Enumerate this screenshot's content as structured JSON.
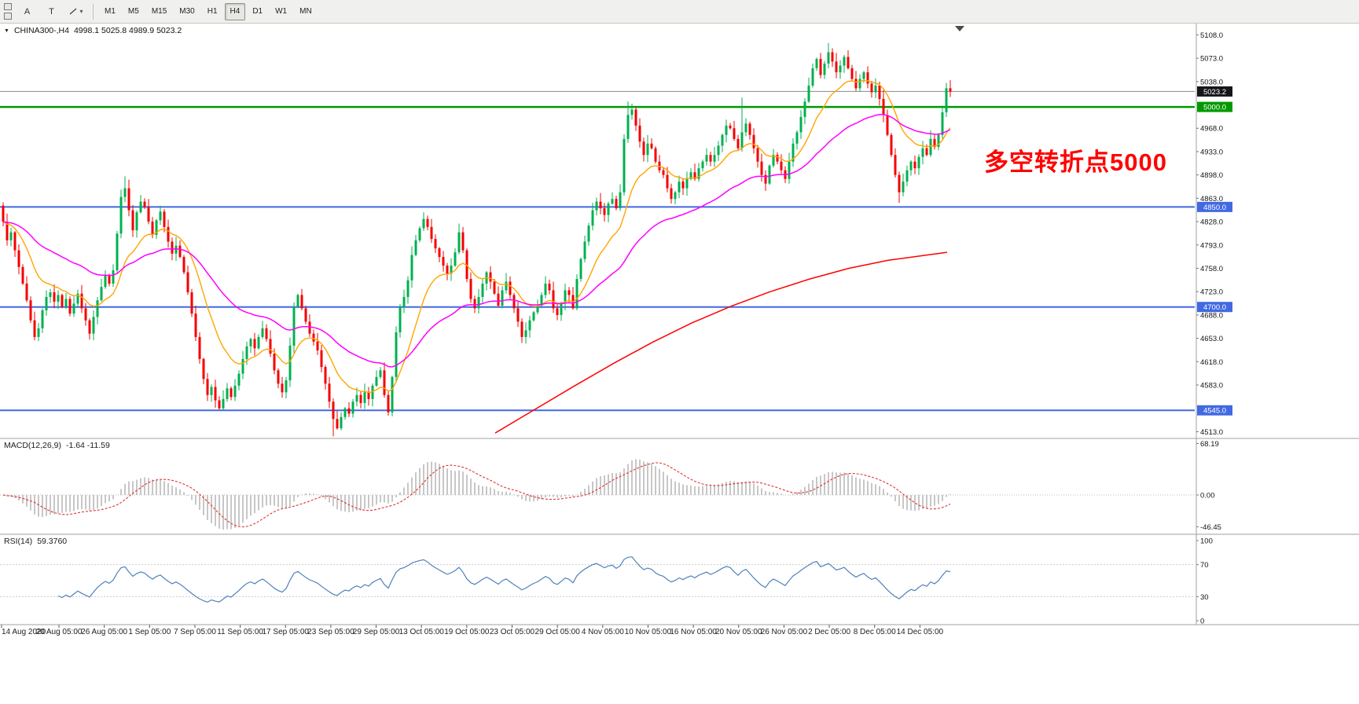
{
  "toolbar": {
    "tool_buttons": [
      "A",
      "T"
    ],
    "timeframes": [
      "M1",
      "M5",
      "M15",
      "M30",
      "H1",
      "H4",
      "D1",
      "W1",
      "MN"
    ],
    "active_timeframe": "H4"
  },
  "icons": {
    "caret_down": "▾",
    "title_marker": "▼"
  },
  "chart": {
    "symbol_period": "CHINA300-,H4",
    "ohlc": "4998.1 5025.8 4989.9 5023.2",
    "annotation": {
      "text": "多空转折点5000",
      "color": "#ff0000"
    }
  },
  "indicators": {
    "macd": {
      "name": "MACD(12,26,9)",
      "values": "-1.64 -11.59"
    },
    "rsi": {
      "name": "RSI(14)",
      "value": "59.3760"
    }
  },
  "chart_data": {
    "type": "candlestick",
    "symbol": "CHINA300-",
    "timeframe": "H4",
    "last_quote": {
      "open": 4998.1,
      "high": 5025.8,
      "low": 4989.9,
      "close": 5023.2
    },
    "colors": {
      "up": "#00b050",
      "down": "#f40000"
    },
    "y_ticks": [
      5108,
      5073,
      5038,
      4968,
      4933,
      4898,
      4863,
      4828,
      4793,
      4758,
      4723,
      4688,
      4653,
      4618,
      4583,
      4513
    ],
    "levels": [
      {
        "price": 5000.0,
        "label": "5000.0",
        "color": "#009900",
        "width": 2.5
      },
      {
        "price": 4850.0,
        "label": "4850.0",
        "color": "#4169e1",
        "width": 2
      },
      {
        "price": 4700.0,
        "label": "4700.0",
        "color": "#4169e1",
        "width": 2
      },
      {
        "price": 4545.0,
        "label": "4545.0",
        "color": "#4169e1",
        "width": 2
      }
    ],
    "bid": {
      "price": 5023.2,
      "label": "5023.2",
      "badge_color": "#15151a",
      "line_color": "#8a8a8a"
    },
    "first_open": 4852,
    "closes": [
      4828,
      4800,
      4812,
      4785,
      4760,
      4735,
      4710,
      4680,
      4655,
      4668,
      4695,
      4715,
      4722,
      4708,
      4718,
      4700,
      4712,
      4690,
      4705,
      4720,
      4698,
      4680,
      4660,
      4685,
      4710,
      4730,
      4748,
      4735,
      4755,
      4810,
      4865,
      4878,
      4845,
      4815,
      4842,
      4858,
      4850,
      4828,
      4808,
      4830,
      4843,
      4820,
      4798,
      4780,
      4792,
      4775,
      4752,
      4722,
      4690,
      4655,
      4622,
      4592,
      4568,
      4580,
      4560,
      4548,
      4562,
      4578,
      4565,
      4582,
      4600,
      4622,
      4641,
      4652,
      4638,
      4655,
      4668,
      4652,
      4630,
      4605,
      4585,
      4572,
      4590,
      4642,
      4700,
      4718,
      4698,
      4678,
      4660,
      4648,
      4635,
      4610,
      4585,
      4558,
      4532,
      4518,
      4535,
      4548,
      4540,
      4558,
      4568,
      4556,
      4572,
      4562,
      4582,
      4595,
      4605,
      4568,
      4542,
      4595,
      4662,
      4700,
      4715,
      4740,
      4778,
      4800,
      4818,
      4832,
      4820,
      4802,
      4788,
      4775,
      4762,
      4750,
      4762,
      4782,
      4812,
      4785,
      4742,
      4712,
      4698,
      4715,
      4735,
      4752,
      4738,
      4720,
      4702,
      4725,
      4738,
      4718,
      4698,
      4678,
      4655,
      4665,
      4680,
      4692,
      4702,
      4718,
      4735,
      4725,
      4698,
      4688,
      4705,
      4725,
      4718,
      4698,
      4742,
      4772,
      4798,
      4822,
      4845,
      4858,
      4848,
      4838,
      4855,
      4862,
      4848,
      4872,
      4952,
      4988,
      4996,
      4972,
      4948,
      4928,
      4945,
      4938,
      4918,
      4905,
      4898,
      4878,
      4862,
      4872,
      4888,
      4878,
      4892,
      4902,
      4892,
      4908,
      4918,
      4928,
      4918,
      4928,
      4942,
      4958,
      4972,
      4968,
      4952,
      4938,
      4962,
      4975,
      4958,
      4938,
      4918,
      4898,
      4885,
      4912,
      4928,
      4918,
      4905,
      4892,
      4918,
      4945,
      4962,
      4985,
      5008,
      5032,
      5058,
      5072,
      5048,
      5065,
      5082,
      5068,
      5052,
      5062,
      5075,
      5058,
      5042,
      5028,
      5042,
      5052,
      5035,
      5022,
      5032,
      5012,
      4988,
      4958,
      4928,
      4898,
      4872,
      4888,
      4905,
      4918,
      4908,
      4925,
      4938,
      4928,
      4952,
      4940,
      4958,
      4992,
      5028,
      5023
    ],
    "wick_overrides": {
      "31": {
        "high": 4896
      },
      "84": {
        "low": 4506
      },
      "159": {
        "high": 5008
      },
      "188": {
        "high": 5014
      },
      "210": {
        "high": 5096
      },
      "228": {
        "low": 4856
      },
      "240": {
        "high": 5036
      }
    },
    "ma": {
      "fast": {
        "period": 14,
        "color": "#ffa500"
      },
      "slow": {
        "period": 45,
        "color": "#ff00ff"
      },
      "long": {
        "color": "#ff0000",
        "anchors": [
          [
            630,
            4511
          ],
          [
            680,
            4546
          ],
          [
            730,
            4581
          ],
          [
            780,
            4615
          ],
          [
            830,
            4647
          ],
          [
            880,
            4676
          ],
          [
            930,
            4701
          ],
          [
            980,
            4723
          ],
          [
            1030,
            4742
          ],
          [
            1080,
            4758
          ],
          [
            1130,
            4770
          ],
          [
            1205,
            4782
          ]
        ]
      }
    },
    "x_labels": [
      "14 Aug 2020",
      "20 Aug 05:00",
      "26 Aug 05:00",
      "1 Sep 05:00",
      "7 Sep 05:00",
      "11 Sep 05:00",
      "17 Sep 05:00",
      "23 Sep 05:00",
      "29 Sep 05:00",
      "13 Oct 05:00",
      "19 Oct 05:00",
      "23 Oct 05:00",
      "29 Oct 05:00",
      "4 Nov 05:00",
      "10 Nov 05:00",
      "16 Nov 05:00",
      "20 Nov 05:00",
      "26 Nov 05:00",
      "2 Dec 05:00",
      "8 Dec 05:00",
      "14 Dec 05:00"
    ],
    "macd": {
      "params": "12,26,9",
      "main_value": -1.64,
      "signal_value": -11.59,
      "ticks": [
        "68.19",
        "0.00",
        "-46.45"
      ],
      "histogram_color": "#b9b9b9",
      "signal_color": "#e03232"
    },
    "rsi": {
      "period": 14,
      "value": 59.376,
      "ticks": [
        "100",
        "70",
        "30",
        "0"
      ],
      "levels": [
        70,
        30
      ],
      "color": "#4f81bd"
    }
  }
}
